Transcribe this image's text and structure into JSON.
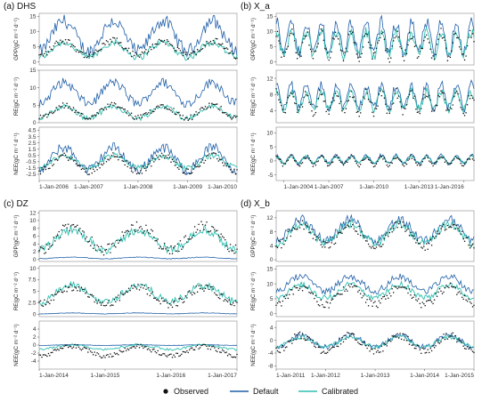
{
  "figure": {
    "legend": {
      "items": [
        {
          "key": "observed",
          "label": "Observed",
          "marker": "dot",
          "color": "#111111"
        },
        {
          "key": "default",
          "label": "Default",
          "marker": "line",
          "color": "#1f5fa8"
        },
        {
          "key": "calibrated",
          "label": "Calibrated",
          "marker": "line",
          "color": "#2fbfb0"
        }
      ]
    }
  },
  "chart_data": [
    {
      "id": "DHS",
      "label": "(a) DHS",
      "type": "line",
      "x_tick_labels": [
        "1-Jan-2006",
        "1-Jan-2007",
        "1-Jan-2008",
        "1-Jan-2009",
        "1-Jan-2010"
      ],
      "x_range": [
        "2006-01-01",
        "2010-01-01"
      ],
      "subplots": [
        {
          "variable": "GPP",
          "ylabel": "GPP(gC m⁻² d⁻¹)",
          "yticks": [
            0,
            5,
            10,
            15
          ],
          "ylim": [
            -1,
            16
          ],
          "series": {
            "observed": {
              "mean": 4.5,
              "amp": 2.5
            },
            "default": {
              "mean": 8.5,
              "amp": 5.0
            },
            "calibrated": {
              "mean": 4.0,
              "amp": 2.5
            }
          }
        },
        {
          "variable": "RE",
          "ylabel": "RE(gC m⁻² d⁻¹)",
          "yticks": [
            0,
            5,
            10,
            15
          ],
          "ylim": [
            0,
            15
          ],
          "series": {
            "observed": {
              "mean": 3.2,
              "amp": 1.8
            },
            "default": {
              "mean": 8.5,
              "amp": 3.0
            },
            "calibrated": {
              "mean": 3.0,
              "amp": 1.7
            }
          }
        },
        {
          "variable": "NEE",
          "ylabel": "NEE(gC m⁻² d⁻¹)",
          "yticks": [
            -2.5,
            -1.5,
            -0.5,
            0.5,
            1.5,
            2.5,
            3.5,
            4.5
          ],
          "ylim": [
            -3.5,
            5.0
          ],
          "series": {
            "observed": {
              "mean": -0.8,
              "amp": 1.2
            },
            "default": {
              "mean": 0.0,
              "amp": 1.8
            },
            "calibrated": {
              "mean": -0.5,
              "amp": 1.0
            }
          }
        }
      ]
    },
    {
      "id": "X_a",
      "label": "(b) X_a",
      "type": "line",
      "x_tick_labels": [
        "1-Jan-2004",
        "1-Jan-2007",
        "1-Jan-2010",
        "1-Jan-2013",
        "1-Jan-2016"
      ],
      "x_range": [
        "2003-07-01",
        "2016-09-01"
      ],
      "subplots": [
        {
          "variable": "GPP",
          "ylabel": "GPP(gC m⁻² d⁻¹)",
          "yticks": [
            0,
            5,
            10,
            15
          ],
          "ylim": [
            -1,
            16
          ],
          "series": {
            "observed": {
              "mean": 5.5,
              "amp": 4.0
            },
            "default": {
              "mean": 8.0,
              "amp": 5.0
            },
            "calibrated": {
              "mean": 6.0,
              "amp": 4.0
            }
          }
        },
        {
          "variable": "RE",
          "ylabel": "RE(gC m⁻² d⁻¹)",
          "yticks": [
            4,
            8,
            12
          ],
          "ylim": [
            1,
            14
          ],
          "series": {
            "observed": {
              "mean": 6.0,
              "amp": 2.5
            },
            "default": {
              "mean": 7.5,
              "amp": 2.8
            },
            "calibrated": {
              "mean": 6.5,
              "amp": 2.2
            }
          }
        },
        {
          "variable": "NEE",
          "ylabel": "NEE(gC m⁻² d⁻¹)",
          "yticks": [
            -5,
            0,
            5,
            10
          ],
          "ylim": [
            -7,
            12
          ],
          "series": {
            "observed": {
              "mean": 0.0,
              "amp": 1.5
            },
            "default": {
              "mean": 0.5,
              "amp": 1.5
            },
            "calibrated": {
              "mean": 0.3,
              "amp": 1.2
            }
          }
        }
      ]
    },
    {
      "id": "DZ",
      "label": "(c) DZ",
      "type": "line",
      "x_tick_labels": [
        "1-Jan-2014",
        "1-Jan-2015",
        "1-Jan-2016",
        "1-Jan-2017"
      ],
      "x_range": [
        "2014-01-01",
        "2017-01-01"
      ],
      "subplots": [
        {
          "variable": "GPP",
          "ylabel": "GPP(gC m⁻² d⁻¹)",
          "yticks": [
            0,
            2,
            4,
            6,
            8,
            10,
            12
          ],
          "ylim": [
            -0.5,
            12.5
          ],
          "series": {
            "observed": {
              "mean": 5.5,
              "amp": 3.0
            },
            "default": {
              "mean": 0.4,
              "amp": 0.2
            },
            "calibrated": {
              "mean": 5.0,
              "amp": 2.5
            }
          }
        },
        {
          "variable": "RE",
          "ylabel": "RE(gC m⁻² d⁻¹)",
          "yticks": [
            0,
            2.5,
            5,
            7.5,
            10
          ],
          "ylim": [
            -0.5,
            10.5
          ],
          "series": {
            "observed": {
              "mean": 4.0,
              "amp": 1.8
            },
            "default": {
              "mean": 0.2,
              "amp": 0.1
            },
            "calibrated": {
              "mean": 4.5,
              "amp": 1.8
            }
          }
        },
        {
          "variable": "NEE",
          "ylabel": "NEE(gC m⁻² d⁻¹)",
          "yticks": [
            -4,
            -2,
            0,
            2,
            4
          ],
          "ylim": [
            -6,
            6
          ],
          "series": {
            "observed": {
              "mean": -1.5,
              "amp": 1.2
            },
            "default": {
              "mean": 0.0,
              "amp": 0.1
            },
            "calibrated": {
              "mean": -0.5,
              "amp": 0.6
            }
          }
        }
      ]
    },
    {
      "id": "X_b",
      "label": "(d) X_b",
      "type": "line",
      "x_tick_labels": [
        "1-Jan-2011",
        "1-Jan-2012",
        "1-Jan-2013",
        "1-Jan-2014",
        "1-Jan-2015"
      ],
      "x_range": [
        "2011-01-01",
        "2015-01-01"
      ],
      "subplots": [
        {
          "variable": "GPP",
          "ylabel": "GPP(gC m⁻² d⁻¹)",
          "yticks": [
            0,
            4,
            8,
            12
          ],
          "ylim": [
            -0.5,
            14
          ],
          "series": {
            "observed": {
              "mean": 7.0,
              "amp": 3.0
            },
            "default": {
              "mean": 8.5,
              "amp": 3.0
            },
            "calibrated": {
              "mean": 7.5,
              "amp": 2.8
            }
          }
        },
        {
          "variable": "RE",
          "ylabel": "RE(gC m⁻² d⁻¹)",
          "yticks": [
            0,
            5,
            10,
            15
          ],
          "ylim": [
            -1,
            16
          ],
          "series": {
            "observed": {
              "mean": 6.0,
              "amp": 3.0
            },
            "default": {
              "mean": 10.0,
              "amp": 2.5
            },
            "calibrated": {
              "mean": 7.5,
              "amp": 2.3
            }
          }
        },
        {
          "variable": "NEE",
          "ylabel": "NEE(gC m⁻² d⁻¹)",
          "yticks": [
            -8,
            -4,
            0,
            4
          ],
          "ylim": [
            -9,
            6
          ],
          "series": {
            "observed": {
              "mean": -1.0,
              "amp": 2.5
            },
            "default": {
              "mean": -0.3,
              "amp": 1.8
            },
            "calibrated": {
              "mean": -0.5,
              "amp": 1.5
            }
          }
        }
      ]
    }
  ]
}
